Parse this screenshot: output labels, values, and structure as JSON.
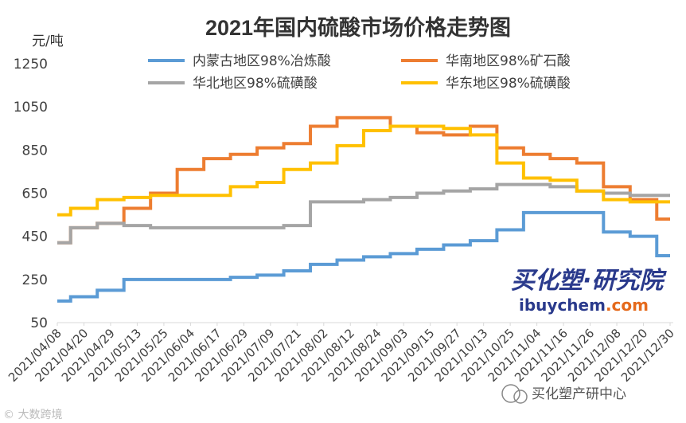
{
  "watermarks": {
    "brand": "买化塑·研究院",
    "url_main": "ibuychem",
    "url_tld": ".com",
    "wechat": "买化塑产研中心",
    "corner": "© 大数跨境"
  },
  "chart_data": {
    "type": "line",
    "title": "2021年国内硫酸市场价格走势图",
    "ylabel": "元/吨",
    "xlabel": "",
    "ylim": [
      50,
      1250
    ],
    "yticks": [
      50,
      250,
      450,
      650,
      850,
      1050,
      1250
    ],
    "legend_position": "top",
    "grid": false,
    "categories": [
      "2021/04/08",
      "2021/04/20",
      "2021/04/29",
      "2021/05/13",
      "2021/05/25",
      "2021/06/04",
      "2021/06/17",
      "2021/06/29",
      "2021/07/09",
      "2021/07/21",
      "2021/08/02",
      "2021/08/12",
      "2021/08/24",
      "2021/09/03",
      "2021/09/15",
      "2021/09/27",
      "2021/10/13",
      "2021/10/25",
      "2021/11/04",
      "2021/11/16",
      "2021/11/26",
      "2021/12/08",
      "2021/12/20",
      "2021/12/30"
    ],
    "series": [
      {
        "name": "内蒙古地区98%冶炼酸",
        "color": "#5b9bd5",
        "values": [
          150,
          170,
          200,
          250,
          250,
          250,
          250,
          260,
          270,
          290,
          320,
          340,
          355,
          370,
          390,
          410,
          430,
          480,
          560,
          560,
          560,
          470,
          450,
          360
        ]
      },
      {
        "name": "华南地区98%矿石酸",
        "color": "#ed7d31",
        "values": [
          420,
          490,
          510,
          580,
          650,
          760,
          810,
          830,
          860,
          880,
          960,
          1000,
          1000,
          960,
          930,
          920,
          960,
          860,
          830,
          810,
          790,
          680,
          620,
          530
        ]
      },
      {
        "name": "华北地区98%硫磺酸",
        "color": "#a5a5a5",
        "values": [
          420,
          490,
          510,
          500,
          490,
          490,
          490,
          490,
          490,
          500,
          610,
          610,
          620,
          630,
          650,
          660,
          670,
          690,
          690,
          680,
          660,
          650,
          640,
          640
        ]
      },
      {
        "name": "华东地区98%硫磺酸",
        "color": "#ffc000",
        "values": [
          550,
          580,
          620,
          630,
          640,
          640,
          640,
          680,
          700,
          760,
          790,
          870,
          940,
          960,
          960,
          950,
          920,
          790,
          720,
          710,
          660,
          620,
          610,
          610
        ]
      }
    ]
  }
}
